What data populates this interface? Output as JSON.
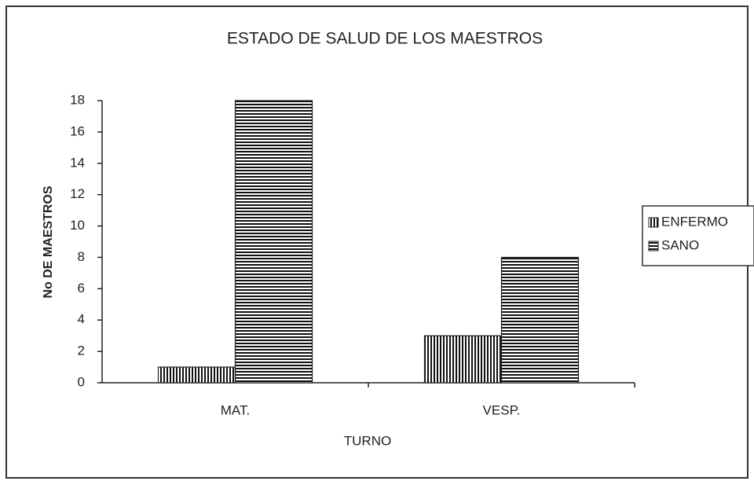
{
  "chart_data": {
    "type": "bar",
    "title": "ESTADO DE SALUD DE LOS MAESTROS",
    "x_label": "TURNO",
    "y_label": "No DE MAESTROS",
    "categories": [
      "MAT.",
      "VESP."
    ],
    "series": [
      {
        "name": "ENFERMO",
        "color": "#111111",
        "pattern": "vertical",
        "values": [
          1,
          3
        ]
      },
      {
        "name": "SANO",
        "color": "#111111",
        "pattern": "horizontal",
        "values": [
          18,
          8
        ]
      }
    ],
    "ylim": [
      0,
      18
    ],
    "yticks": [
      0,
      2,
      4,
      6,
      8,
      10,
      12,
      14,
      16,
      18
    ],
    "grid": false,
    "legend": "right"
  }
}
